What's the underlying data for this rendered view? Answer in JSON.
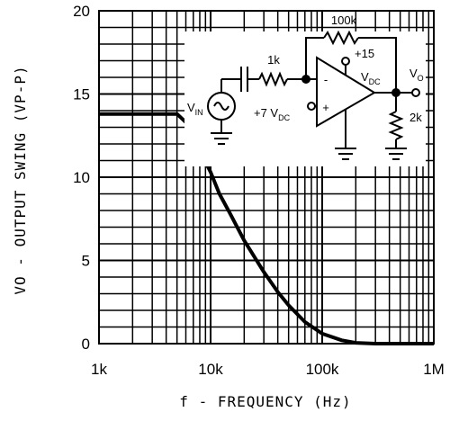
{
  "chart_data": {
    "type": "line",
    "xlabel": "f - FREQUENCY (Hz)",
    "ylabel": "VO - OUTPUT SWING (VP-P)",
    "xscale": "log",
    "xlim": [
      1000,
      1000000
    ],
    "ylim": [
      0,
      20
    ],
    "x_ticks": [
      1000,
      10000,
      100000,
      1000000
    ],
    "x_tick_labels": [
      "1k",
      "10k",
      "100k",
      "1M"
    ],
    "y_ticks": [
      0,
      5,
      10,
      15,
      20
    ],
    "y_tick_labels": [
      "0",
      "5",
      "10",
      "15",
      "20"
    ],
    "grid": true,
    "series": [
      {
        "x": [
          1000,
          2000,
          4000,
          5000,
          6000,
          7000,
          8000,
          10000,
          12000,
          15000,
          20000,
          30000,
          40000,
          50000,
          70000,
          100000,
          150000,
          200000,
          300000,
          500000,
          1000000
        ],
        "y": [
          13.8,
          13.8,
          13.8,
          13.8,
          13.3,
          12.5,
          11.6,
          10.3,
          9.0,
          7.8,
          6.2,
          4.3,
          3.1,
          2.3,
          1.3,
          0.6,
          0.2,
          0.05,
          0,
          0,
          0
        ]
      }
    ],
    "inset": {
      "description_labels": [
        "100k",
        "+15",
        "VDC",
        "1k",
        "VO",
        "VIN",
        "+7 VDC",
        "2k",
        "-",
        "+"
      ],
      "feedback_resistor": "100k",
      "input_resistor": "1k",
      "load_resistor": "2k",
      "supply_label": "+15",
      "supply_unit": "VDC",
      "input_label": "VIN",
      "output_label": "VO",
      "bias_label": "+7 VDC",
      "minus_sign": "-",
      "plus_sign": "+"
    }
  }
}
